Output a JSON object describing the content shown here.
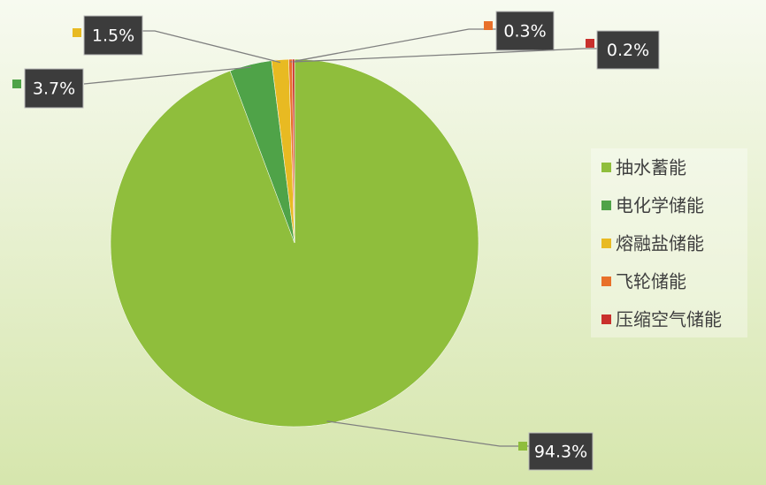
{
  "chart_data": {
    "type": "pie",
    "categories": [
      "抽水蓄能",
      "电化学储能",
      "熔融盐储能",
      "飞轮储能",
      "压缩空气储能"
    ],
    "values": [
      94.3,
      3.7,
      1.5,
      0.3,
      0.2
    ],
    "value_labels": [
      "94.3%",
      "3.7%",
      "1.5%",
      "0.3%",
      "0.2%"
    ],
    "colors": [
      "#8fbe3c",
      "#4fa348",
      "#e8ba22",
      "#e8702a",
      "#c9302c"
    ],
    "legend": "right"
  }
}
